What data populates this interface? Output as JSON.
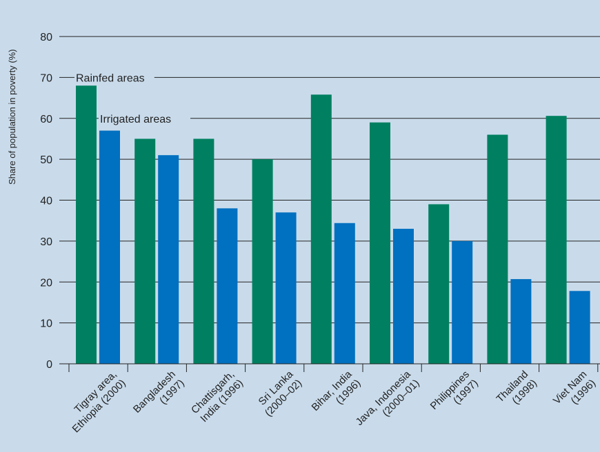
{
  "colors": {
    "background": "#c9dbeb",
    "rainfed": "#008060",
    "irrigated": "#0070c0",
    "axis": "#222222",
    "grid": "#222222"
  },
  "chart_data": {
    "type": "bar",
    "title": "",
    "xlabel": "",
    "ylabel": "Share of population in poverty (%)",
    "ylim": [
      0,
      80
    ],
    "yticks": [
      0,
      10,
      20,
      30,
      40,
      50,
      60,
      70,
      80
    ],
    "grid": true,
    "categories": [
      [
        "Tigray area,",
        "Ethiopia (2000)"
      ],
      [
        "Bangladesh",
        "(1997)"
      ],
      [
        "Chattisgarh,",
        "India (1996)"
      ],
      [
        "Sri Lanka",
        "(2000–02)"
      ],
      [
        "Bihar, India",
        "(1996)"
      ],
      [
        "Java, Indonesia",
        "(2000–01)"
      ],
      [
        "Philippines",
        "(1997)"
      ],
      [
        "Thailand",
        "(1998)"
      ],
      [
        "Viet Nam",
        "(1996)"
      ]
    ],
    "series": [
      {
        "name": "Rainfed areas",
        "color": "#008060",
        "values": [
          68,
          55,
          55,
          50,
          65.8,
          59,
          39,
          56,
          60.6
        ]
      },
      {
        "name": "Irrigated areas",
        "color": "#0070c0",
        "values": [
          57,
          51,
          38,
          37,
          34.4,
          33,
          30,
          20.7,
          17.8
        ]
      }
    ]
  }
}
